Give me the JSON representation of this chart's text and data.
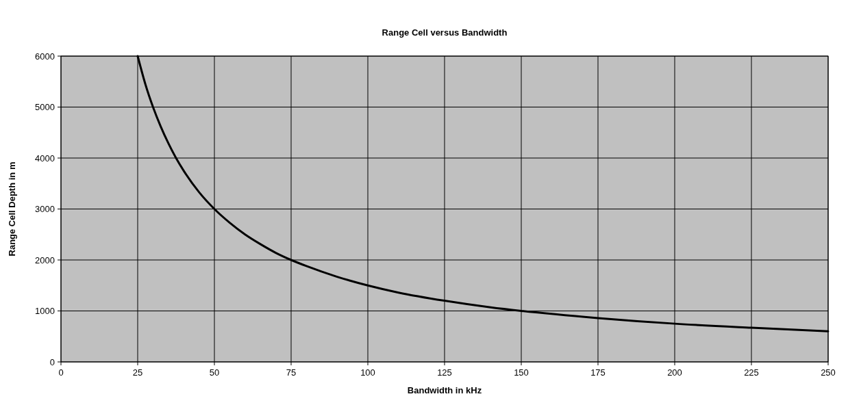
{
  "chart_data": {
    "type": "line",
    "title": "Range Cell versus Bandwidth",
    "xlabel": "Bandwidth in kHz",
    "ylabel": "Range Cell Depth in m",
    "x": [
      25,
      27.5,
      30,
      32.5,
      35,
      37.5,
      40,
      45,
      50,
      55,
      60,
      65,
      70,
      75,
      80,
      90,
      100,
      110,
      125,
      140,
      150,
      175,
      200,
      225,
      250
    ],
    "series": [
      {
        "color": "#000000",
        "values": [
          6000,
          5450,
          5000,
          4620,
          4290,
          4000,
          3750,
          3330,
          3000,
          2730,
          2500,
          2310,
          2140,
          2000,
          1880,
          1670,
          1500,
          1360,
          1200,
          1070,
          1000,
          860,
          750,
          670,
          600
        ]
      }
    ],
    "xlim": [
      0,
      250
    ],
    "xticks": [
      0,
      25,
      50,
      75,
      100,
      125,
      150,
      175,
      200,
      225,
      250
    ],
    "ylim": [
      0,
      6000
    ],
    "yticks": [
      0,
      1000,
      2000,
      3000,
      4000,
      5000,
      6000
    ],
    "grid": true,
    "marker": "none",
    "line_style": "solid"
  }
}
